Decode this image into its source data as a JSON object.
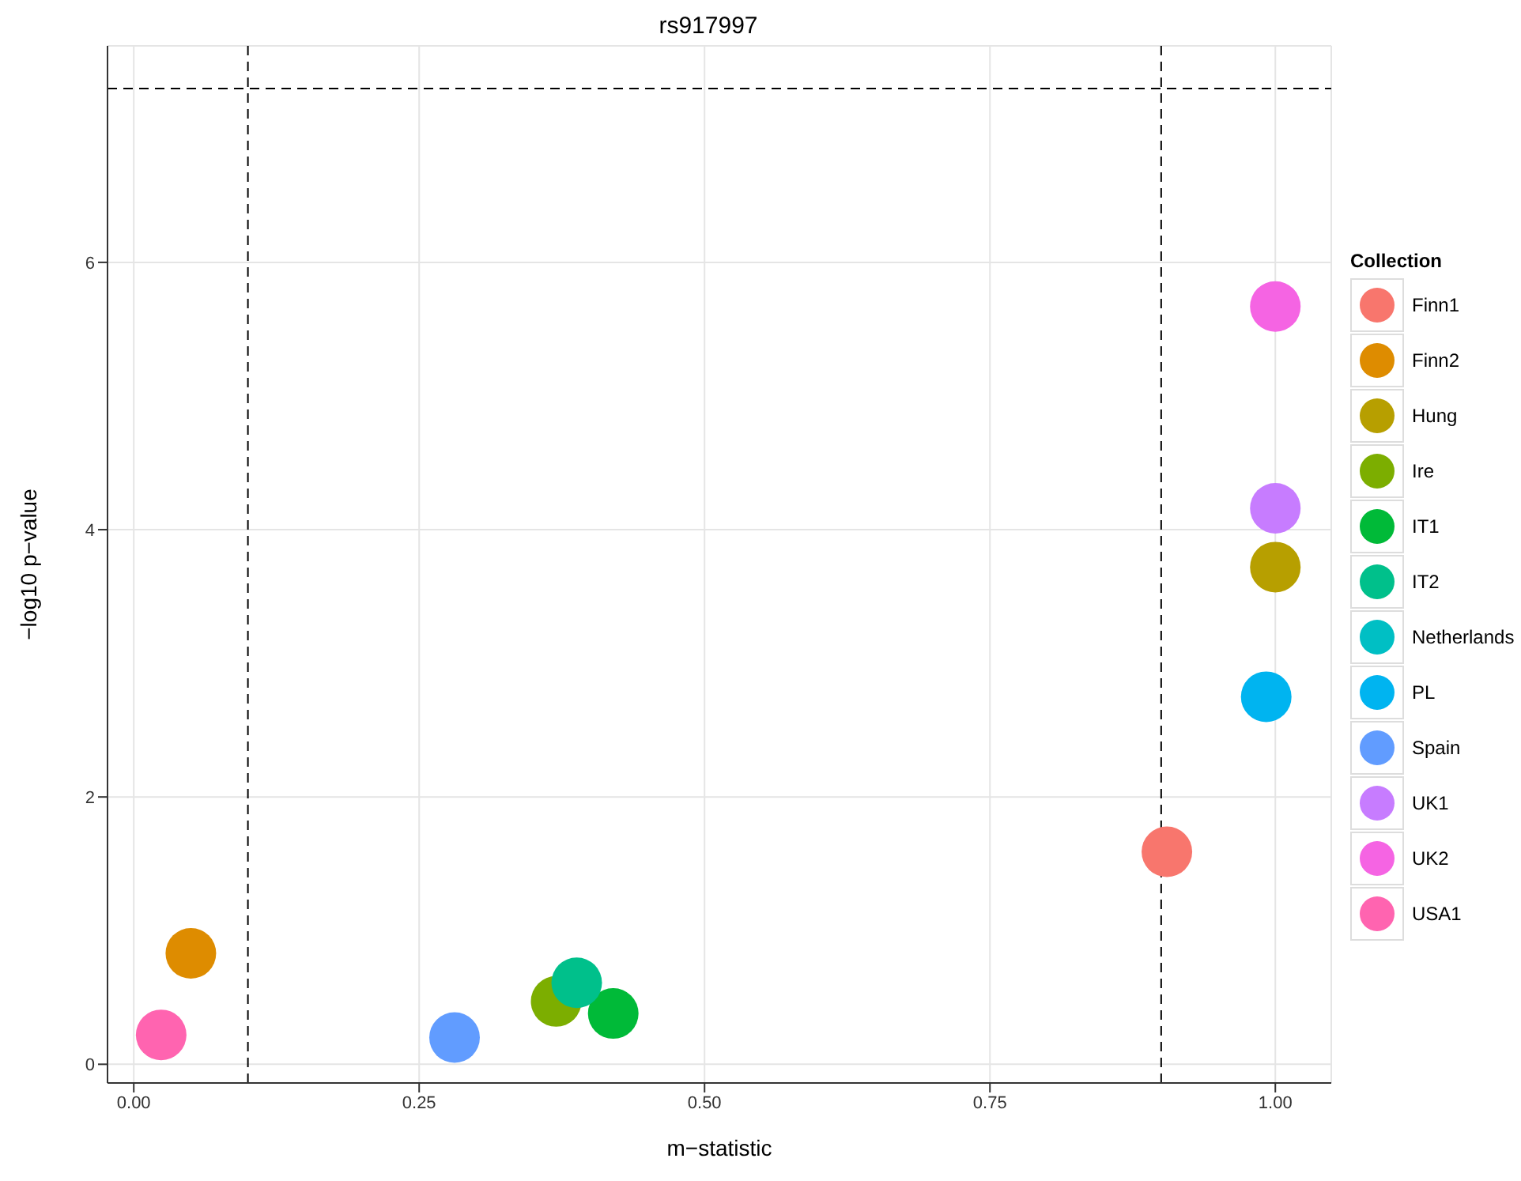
{
  "chart_data": {
    "type": "scatter",
    "title": "rs917997",
    "xlabel": "m−statistic",
    "ylabel": "−log10 p−value",
    "legend_title": "Collection",
    "legend": "right",
    "grid": true,
    "marker": "circle",
    "xlim": [
      -0.023,
      1.049
    ],
    "ylim": [
      -0.14,
      7.62
    ],
    "xticks": [
      {
        "value": 0,
        "label": "0.00"
      },
      {
        "value": 0.25,
        "label": "0.25"
      },
      {
        "value": 0.5,
        "label": "0.50"
      },
      {
        "value": 0.75,
        "label": "0.75"
      },
      {
        "value": 1,
        "label": "1.00"
      }
    ],
    "yticks": [
      0,
      2,
      4,
      6
    ],
    "ref_lines": [
      {
        "axis": "x",
        "value": 0.1,
        "line_style": "dashed"
      },
      {
        "axis": "x",
        "value": 0.9,
        "line_style": "dashed"
      },
      {
        "axis": "y",
        "value": 7.3,
        "line_style": "dashed"
      }
    ],
    "series": [
      {
        "name": "Finn1",
        "color": "#f8766d",
        "x": [
          0.905
        ],
        "values": [
          1.59
        ]
      },
      {
        "name": "Finn2",
        "color": "#de8c00",
        "x": [
          0.05
        ],
        "values": [
          0.83
        ]
      },
      {
        "name": "Hung",
        "color": "#b79f00",
        "x": [
          1.0
        ],
        "values": [
          3.72
        ]
      },
      {
        "name": "Ire",
        "color": "#7cae00",
        "x": [
          0.37
        ],
        "values": [
          0.47
        ]
      },
      {
        "name": "IT1",
        "color": "#00ba38",
        "x": [
          0.42
        ],
        "values": [
          0.38
        ]
      },
      {
        "name": "IT2",
        "color": "#00c08b",
        "x": [
          0.388
        ],
        "values": [
          0.61
        ]
      },
      {
        "name": "Netherlands",
        "color": "#00bfc4",
        "x": [
          null
        ],
        "values": [
          null
        ]
      },
      {
        "name": "PL",
        "color": "#00b4f0",
        "x": [
          0.992
        ],
        "values": [
          2.75
        ]
      },
      {
        "name": "Spain",
        "color": "#619cff",
        "x": [
          0.281
        ],
        "values": [
          0.2
        ]
      },
      {
        "name": "UK1",
        "color": "#c77cff",
        "x": [
          1.0
        ],
        "values": [
          4.16
        ]
      },
      {
        "name": "UK2",
        "color": "#f564e3",
        "x": [
          1.0
        ],
        "values": [
          5.67
        ]
      },
      {
        "name": "USA1",
        "color": "#ff64b0",
        "x": [
          0.024
        ],
        "values": [
          0.22
        ]
      }
    ]
  }
}
